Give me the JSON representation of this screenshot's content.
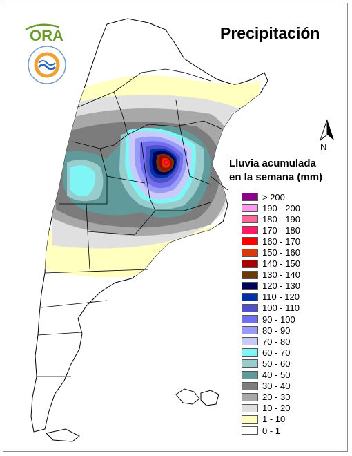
{
  "title": "Precipitación",
  "legend": {
    "title_line1": "Lluvia acumulada",
    "title_line2": "en la semana (mm)",
    "classes": [
      {
        "label": "> 200",
        "color": "#8b008b"
      },
      {
        "label": "190 - 200",
        "color": "#ff99ee"
      },
      {
        "label": "180 - 190",
        "color": "#ff6699"
      },
      {
        "label": "170 - 180",
        "color": "#ff1a66"
      },
      {
        "label": "160 - 170",
        "color": "#ff0000"
      },
      {
        "label": "150 - 160",
        "color": "#d83a0a"
      },
      {
        "label": "140 - 150",
        "color": "#a80000"
      },
      {
        "label": "130 - 140",
        "color": "#6b3800"
      },
      {
        "label": "120 - 130",
        "color": "#00005a"
      },
      {
        "label": "110 - 120",
        "color": "#0030a8"
      },
      {
        "label": "100 - 110",
        "color": "#5050c8"
      },
      {
        "label": "90 - 100",
        "color": "#6f6fef"
      },
      {
        "label": "80 - 90",
        "color": "#9a9af7"
      },
      {
        "label": "70 - 80",
        "color": "#cacafa"
      },
      {
        "label": "60 - 70",
        "color": "#7ff5f5"
      },
      {
        "label": "50 - 60",
        "color": "#99cdcd"
      },
      {
        "label": "40 - 50",
        "color": "#609a9a"
      },
      {
        "label": "30 - 40",
        "color": "#7c7c7c"
      },
      {
        "label": "20 - 30",
        "color": "#a8a8a8"
      },
      {
        "label": "10 - 20",
        "color": "#e0e0e0"
      },
      {
        "label": "1 - 10",
        "color": "#ffffc0"
      },
      {
        "label": "0 - 1",
        "color": "#ffffff"
      }
    ]
  },
  "north_label": "N",
  "logos": {
    "ora_text": "ORA",
    "smn_text": "SERVICIO METEOROLÓGICO NACIONAL",
    "smn_country": "ARGENTINA"
  },
  "icons": {
    "north_arrow": "north-arrow-icon",
    "ora_logo": "ora-logo",
    "smn_logo": "smn-seal-logo"
  }
}
